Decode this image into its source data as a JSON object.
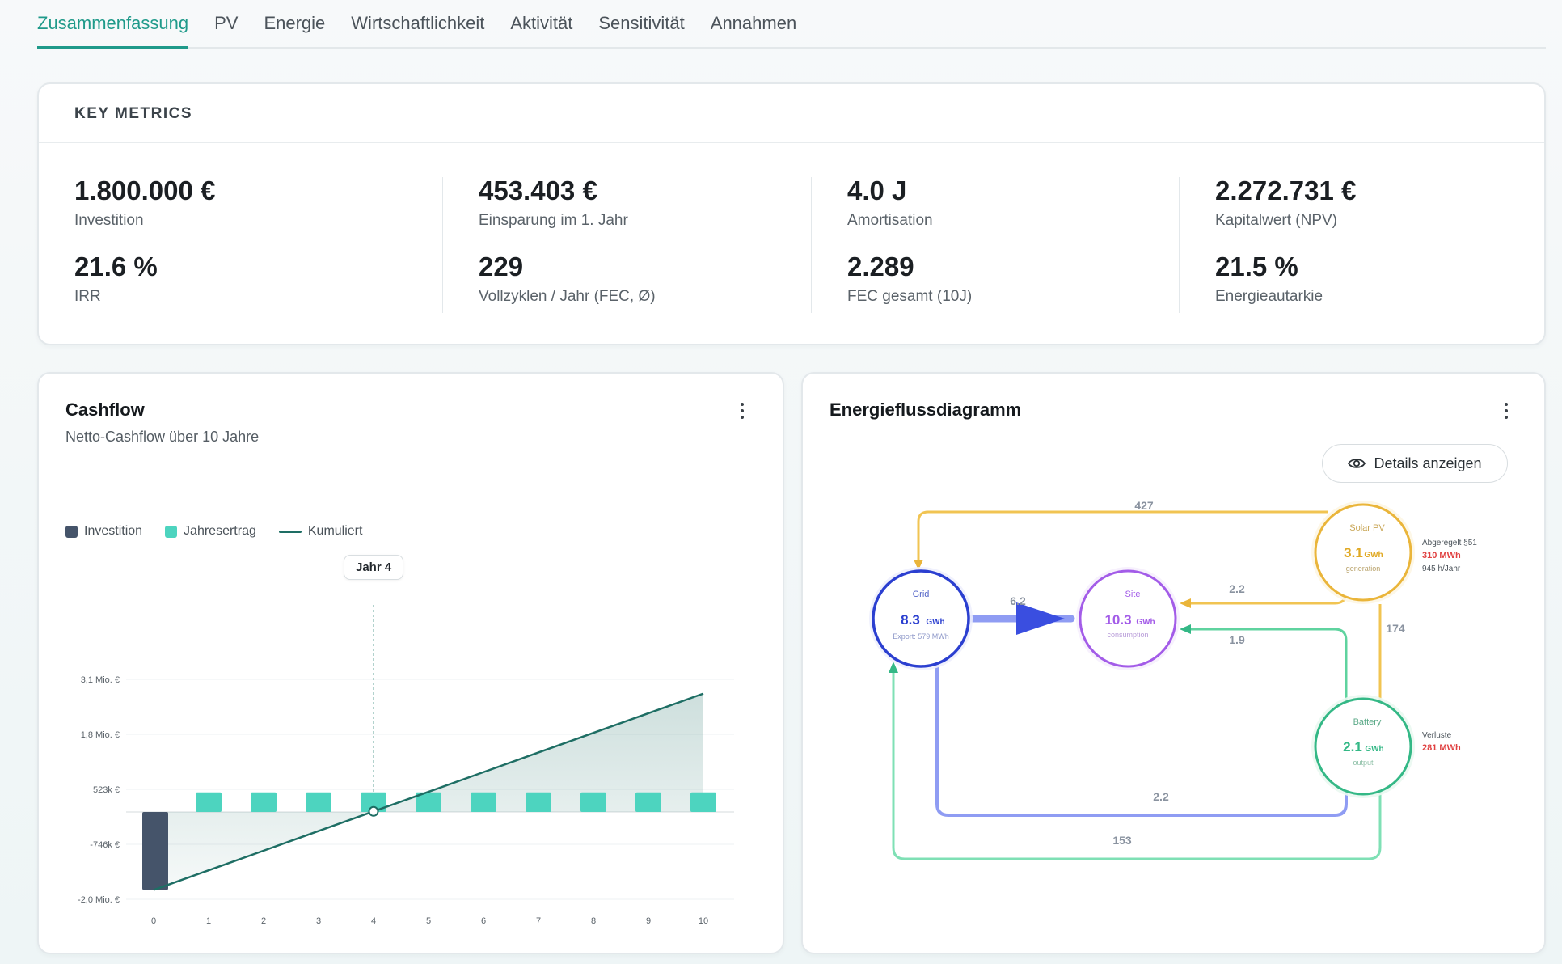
{
  "tabs": [
    {
      "label": "Zusammenfassung",
      "active": true
    },
    {
      "label": "PV"
    },
    {
      "label": "Energie"
    },
    {
      "label": "Wirtschaftlichkeit"
    },
    {
      "label": "Aktivität"
    },
    {
      "label": "Sensitivität"
    },
    {
      "label": "Annahmen"
    }
  ],
  "key_metrics": {
    "title": "KEY METRICS",
    "items": [
      {
        "value": "1.800.000 €",
        "label": "Investition"
      },
      {
        "value": "453.403 €",
        "label": "Einsparung im 1. Jahr"
      },
      {
        "value": "4.0 J",
        "label": "Amortisation"
      },
      {
        "value": "2.272.731 €",
        "label": "Kapitalwert (NPV)"
      },
      {
        "value": "21.6 %",
        "label": "IRR"
      },
      {
        "value": "229",
        "label": "Vollzyklen / Jahr (FEC, Ø)"
      },
      {
        "value": "2.289",
        "label": "FEC gesamt (10J)"
      },
      {
        "value": "21.5 %",
        "label": "Energieautarkie"
      }
    ]
  },
  "cashflow": {
    "title": "Cashflow",
    "subtitle": "Netto-Cashflow über 10 Jahre",
    "legend": {
      "investition": "Investition",
      "jahresertrag": "Jahresertrag",
      "kumuliert": "Kumuliert"
    },
    "tooltip": "Jahr 4",
    "colors": {
      "investition": "#45546a",
      "jahresertrag": "#4dd4bf",
      "kumuliert": "#1e6e64"
    }
  },
  "chart_data": {
    "type": "bar",
    "categories": [
      "0",
      "1",
      "2",
      "3",
      "4",
      "5",
      "6",
      "7",
      "8",
      "9",
      "10"
    ],
    "series": [
      {
        "name": "Investition",
        "values": [
          -1800000,
          0,
          0,
          0,
          0,
          0,
          0,
          0,
          0,
          0,
          0
        ]
      },
      {
        "name": "Jahresertrag",
        "values": [
          0,
          453403,
          453403,
          453403,
          453403,
          453403,
          453403,
          453403,
          453403,
          453403,
          453403
        ]
      },
      {
        "name": "Kumuliert",
        "type": "line",
        "values": [
          -1800000,
          -1346597,
          -893194,
          -439791,
          13612,
          467015,
          920418,
          1373821,
          1827224,
          2280627,
          2734030
        ]
      }
    ],
    "y_ticks": [
      "3,1 Mio. €",
      "1,8 Mio. €",
      "523k €",
      "-746k €",
      "-2,0 Mio. €"
    ],
    "y_tick_values": [
      3063000,
      1793000,
      523000,
      -746000,
      -2016000
    ],
    "ylim": [
      -2016000,
      3063000
    ],
    "highlight_x": "4",
    "title": "Cashflow",
    "subtitle": "Netto-Cashflow über 10 Jahre",
    "xlabel": "",
    "ylabel": "",
    "grid": true,
    "legend_position": "top-left"
  },
  "energy": {
    "title": "Energieflussdiagramm",
    "details_button": "Details anzeigen",
    "nodes": {
      "grid": {
        "label": "Grid",
        "value": "8.3",
        "unit": "GWh",
        "sub": "Export: 579 MWh",
        "color": "#2b3fd0"
      },
      "site": {
        "label": "Site",
        "value": "10.3",
        "unit": "GWh",
        "sub": "consumption",
        "color": "#a35ce8"
      },
      "solar": {
        "label": "Solar PV",
        "value": "3.1",
        "unit": "GWh",
        "sub": "generation",
        "color": "#eab53a"
      },
      "battery": {
        "label": "Battery",
        "value": "2.1",
        "unit": "GWh",
        "sub": "output",
        "color": "#34b886"
      }
    },
    "solar_note": {
      "label": "Abgeregelt §51",
      "value": "310 MWh",
      "extra": "945 h/Jahr"
    },
    "battery_note": {
      "label": "Verluste",
      "value": "281 MWh"
    },
    "flows": {
      "solar_grid": "427",
      "grid_site": "6.2",
      "solar_site": "2.2",
      "battery_site": "1.9",
      "solar_battery": "174",
      "grid_battery": "2.2",
      "battery_grid": "153"
    }
  }
}
